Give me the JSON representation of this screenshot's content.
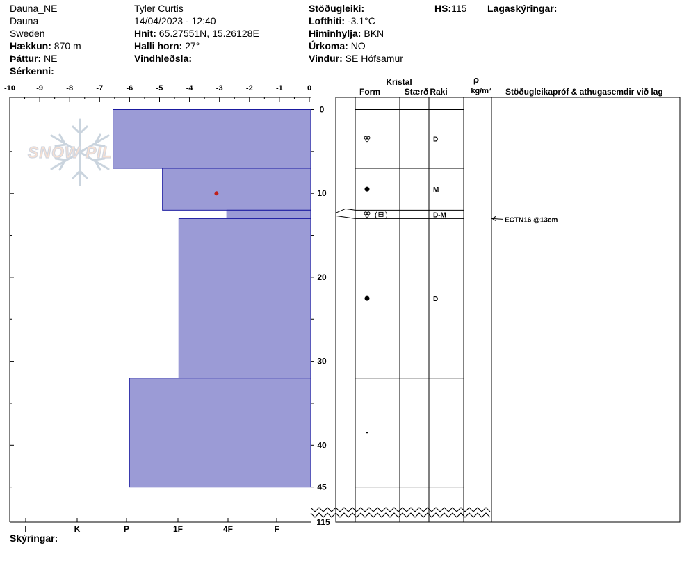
{
  "header": {
    "col1": {
      "site": "Dauna_NE",
      "area": "Dauna",
      "country": "Sweden",
      "elevation_label": "Hækkun:",
      "elevation_value": "870 m",
      "aspect_label": "Þáttur:",
      "aspect_value": "NE",
      "features_label": "Sérkenni:"
    },
    "col2": {
      "observer": "Tyler Curtis",
      "datetime": "14/04/2023 - 12:40",
      "coords_label": "Hnit:",
      "coords_value": "65.27551N, 15.26128E",
      "slope_label": "Halli horn:",
      "slope_value": "27°",
      "wind_loading_label": "Vindhleðsla:"
    },
    "col3": {
      "stability_label": "Stöðugleiki:",
      "air_temp_label": "Lofthiti:",
      "air_temp_value": "-3.1°C",
      "sky_label": "Himinhylja:",
      "sky_value": "BKN",
      "precip_label": "Úrkoma:",
      "precip_value": "NO",
      "wind_label": "Vindur:",
      "wind_value": "SE Hófsamur"
    },
    "hs_label": "HS:",
    "hs_value": "115",
    "layers_label": "Lagaskýringar:"
  },
  "watermark": "SNOW PILOT",
  "footer": {
    "notes_label": "Skýringar:"
  },
  "table_headers": {
    "crystal": "Kristal",
    "form": "Form",
    "size": "Stærð",
    "moisture": "Raki",
    "rho": "ρ",
    "density_unit": "kg/m³",
    "tests": "Stöðugleikapróf & athugasemdir við lag"
  },
  "chart_data": {
    "type": "bar",
    "temperature_axis": {
      "range": [
        -10,
        0
      ],
      "ticks": [
        "-10",
        "-9",
        "-8",
        "-7",
        "-6",
        "-5",
        "-4",
        "-3",
        "-2",
        "-1",
        "0"
      ]
    },
    "hardness_axis": {
      "ticks": [
        "I",
        "K",
        "P",
        "1F",
        "4F",
        "F"
      ]
    },
    "depth_axis": {
      "range": [
        0,
        45
      ],
      "ticks": [
        "0",
        "10",
        "20",
        "30",
        "40",
        "45"
      ],
      "bottom_label": "115",
      "break": true
    },
    "layers": [
      {
        "top": 0,
        "bottom": 7,
        "hardness": 6.6,
        "form": "dendrite",
        "moisture": "D"
      },
      {
        "top": 7,
        "bottom": 12,
        "hardness": 4.95,
        "form": "round",
        "moisture": "M"
      },
      {
        "top": 12,
        "bottom": 13,
        "hardness": 2.8,
        "form": "dendrite",
        "form2": "facet",
        "moisture": "D-M"
      },
      {
        "top": 13,
        "bottom": 32,
        "hardness": 4.4,
        "form": "round",
        "moisture": "D"
      },
      {
        "top": 32,
        "bottom": 45,
        "hardness": 6.05,
        "form": "dot",
        "moisture": ""
      }
    ],
    "temperature_points": [
      {
        "temp": -3.1,
        "depth": 10
      }
    ],
    "stability_tests": [
      {
        "label": "ECTN16 @13cm",
        "depth": 13
      }
    ],
    "colors": {
      "bar_fill": "#9b9bd6",
      "bar_stroke": "#1a1aa0",
      "temp_point": "#c0201a"
    }
  }
}
